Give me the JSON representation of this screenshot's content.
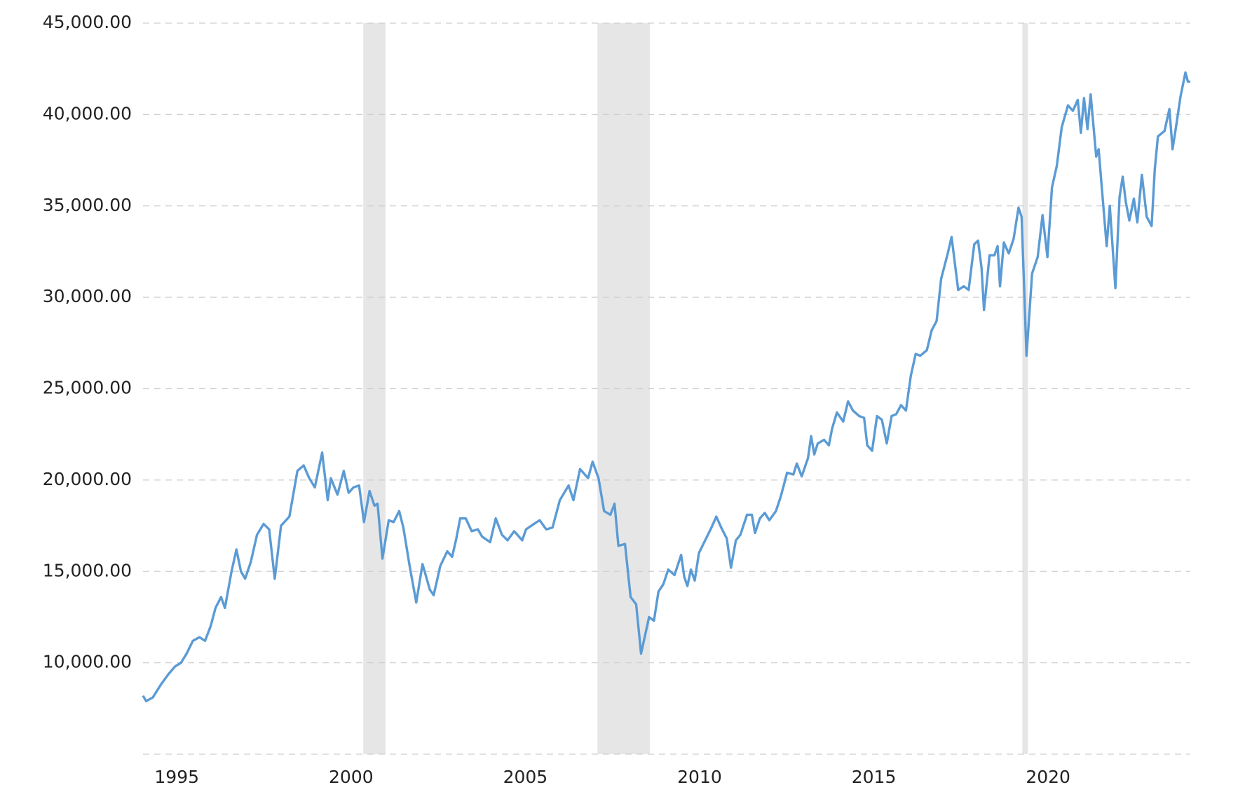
{
  "chart_data": {
    "type": "line",
    "x": [
      1994.03,
      1994.12,
      1994.31,
      1994.54,
      1994.77,
      1994.95,
      1995.12,
      1995.28,
      1995.46,
      1995.65,
      1995.81,
      1995.97,
      1996.11,
      1996.27,
      1996.38,
      1996.57,
      1996.71,
      1996.84,
      1996.96,
      1997.12,
      1997.3,
      1997.49,
      1997.65,
      1997.81,
      1997.99,
      1998.23,
      1998.46,
      1998.64,
      1998.8,
      1998.96,
      1999.17,
      1999.33,
      1999.42,
      1999.61,
      1999.79,
      1999.93,
      2000.07,
      2000.23,
      2000.37,
      2000.53,
      2000.67,
      2000.76,
      2000.9,
      2001.08,
      2001.22,
      2001.38,
      2001.5,
      2001.68,
      2001.87,
      2002.05,
      2002.26,
      2002.37,
      2002.56,
      2002.76,
      2002.9,
      2003.02,
      2003.13,
      2003.29,
      2003.46,
      2003.64,
      2003.76,
      2003.99,
      2004.15,
      2004.33,
      2004.49,
      2004.68,
      2004.91,
      2005.02,
      2005.25,
      2005.41,
      2005.6,
      2005.78,
      2005.99,
      2006.24,
      2006.38,
      2006.57,
      2006.8,
      2006.93,
      2007.1,
      2007.26,
      2007.44,
      2007.56,
      2007.67,
      2007.86,
      2008.02,
      2008.18,
      2008.32,
      2008.55,
      2008.69,
      2008.82,
      2008.96,
      2009.1,
      2009.28,
      2009.47,
      2009.56,
      2009.65,
      2009.75,
      2009.86,
      2009.98,
      2010.16,
      2010.34,
      2010.48,
      2010.62,
      2010.78,
      2010.9,
      2011.04,
      2011.17,
      2011.36,
      2011.5,
      2011.59,
      2011.73,
      2011.87,
      2012.0,
      2012.19,
      2012.33,
      2012.51,
      2012.69,
      2012.79,
      2012.93,
      2013.11,
      2013.2,
      2013.29,
      2013.39,
      2013.57,
      2013.71,
      2013.8,
      2013.94,
      2014.12,
      2014.26,
      2014.4,
      2014.58,
      2014.72,
      2014.81,
      2014.95,
      2015.09,
      2015.23,
      2015.37,
      2015.51,
      2015.64,
      2015.78,
      2015.92,
      2016.06,
      2016.2,
      2016.33,
      2016.52,
      2016.66,
      2016.8,
      2016.93,
      2017.12,
      2017.23,
      2017.42,
      2017.58,
      2017.72,
      2017.88,
      2017.99,
      2018.09,
      2018.16,
      2018.32,
      2018.46,
      2018.55,
      2018.62,
      2018.73,
      2018.87,
      2019.01,
      2019.15,
      2019.24,
      2019.38,
      2019.54,
      2019.7,
      2019.84,
      2019.98,
      2020.11,
      2020.25,
      2020.39,
      2020.57,
      2020.71,
      2020.85,
      2020.94,
      2021.03,
      2021.13,
      2021.22,
      2021.38,
      2021.45,
      2021.54,
      2021.68,
      2021.77,
      2021.93,
      2022.05,
      2022.14,
      2022.23,
      2022.33,
      2022.46,
      2022.56,
      2022.69,
      2022.83,
      2022.97,
      2023.06,
      2023.15,
      2023.34,
      2023.48,
      2023.57,
      2023.66,
      2023.8,
      2023.94,
      2024.01,
      2024.08
    ],
    "series": [
      {
        "color": "#5b9bd5",
        "values": [
          8200,
          7900,
          8100,
          8800,
          9400,
          9800,
          10000,
          10500,
          11200,
          11400,
          11200,
          12000,
          13000,
          13600,
          13000,
          15000,
          16200,
          15000,
          14600,
          15500,
          17000,
          17600,
          17300,
          14600,
          17500,
          18000,
          20500,
          20800,
          20100,
          19600,
          21500,
          18900,
          20100,
          19200,
          20500,
          19300,
          19600,
          19700,
          17700,
          19400,
          18600,
          18700,
          15700,
          17800,
          17700,
          18300,
          17400,
          15300,
          13300,
          15400,
          14000,
          13700,
          15300,
          16100,
          15800,
          16800,
          17900,
          17900,
          17200,
          17300,
          16900,
          16600,
          17900,
          17000,
          16700,
          17200,
          16700,
          17300,
          17600,
          17800,
          17300,
          17400,
          18900,
          19700,
          18900,
          20600,
          20100,
          21000,
          20100,
          18300,
          18100,
          18700,
          16400,
          16500,
          13600,
          13200,
          10500,
          12500,
          12300,
          13900,
          14300,
          15100,
          14800,
          15900,
          14700,
          14200,
          15100,
          14500,
          16000,
          16700,
          17400,
          18000,
          17400,
          16800,
          15200,
          16700,
          17000,
          18100,
          18100,
          17100,
          17900,
          18200,
          17800,
          18300,
          19100,
          20400,
          20300,
          20900,
          20200,
          21200,
          22400,
          21400,
          22000,
          22200,
          21900,
          22800,
          23700,
          23200,
          24300,
          23800,
          23500,
          23400,
          21900,
          21600,
          23500,
          23300,
          22000,
          23500,
          23600,
          24100,
          23800,
          25700,
          26900,
          26800,
          27100,
          28200,
          28700,
          31000,
          32400,
          33300,
          30400,
          30600,
          30400,
          32900,
          33100,
          31600,
          29300,
          32300,
          32300,
          32800,
          30600,
          33000,
          32400,
          33200,
          34900,
          34400,
          26800,
          31300,
          32200,
          34500,
          32200,
          36000,
          37200,
          39300,
          40500,
          40200,
          40800,
          39000,
          40900,
          39200,
          41100,
          37700,
          38100,
          36000,
          32800,
          35000,
          30500,
          35500,
          36600,
          35200,
          34200,
          35400,
          34100,
          36700,
          34400,
          33900,
          37000,
          38800,
          39100,
          40300,
          38100,
          39200,
          41000,
          42300,
          41800,
          41800
        ]
      }
    ],
    "xlim": [
      1994.03,
      2024.08
    ],
    "xticks": [
      1995,
      2000,
      2005,
      2010,
      2015,
      2020
    ],
    "ylim": [
      5000,
      45000
    ],
    "yticks": [
      {
        "value": 10000,
        "label": "10,000.00"
      },
      {
        "value": 15000,
        "label": "15,000.00"
      },
      {
        "value": 20000,
        "label": "20,000.00"
      },
      {
        "value": 25000,
        "label": "25,000.00"
      },
      {
        "value": 30000,
        "label": "30,000.00"
      },
      {
        "value": 35000,
        "label": "35,000.00"
      },
      {
        "value": 40000,
        "label": "40,000.00"
      },
      {
        "value": 45000,
        "label": "45,000.00"
      }
    ],
    "recessions": [
      [
        2000.35,
        2000.99
      ],
      [
        2007.07,
        2008.57
      ],
      [
        2019.26,
        2019.42
      ]
    ],
    "recession_color": "#e6e6e6",
    "grid": true
  }
}
